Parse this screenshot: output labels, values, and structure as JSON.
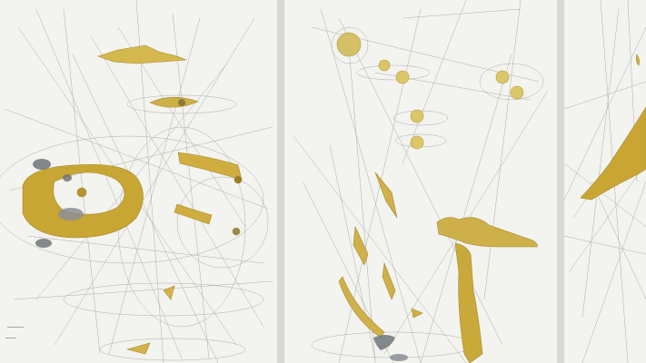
{
  "artwork": {
    "panels": [
      {
        "id": "left"
      },
      {
        "id": "middle"
      },
      {
        "id": "right"
      }
    ],
    "colors": {
      "paper": "#f3f3ef",
      "gold": "#c9a93a",
      "gold_light": "#e2cb6a",
      "graphite": "#8a8a88",
      "ink_grey": "#6f7478"
    }
  }
}
